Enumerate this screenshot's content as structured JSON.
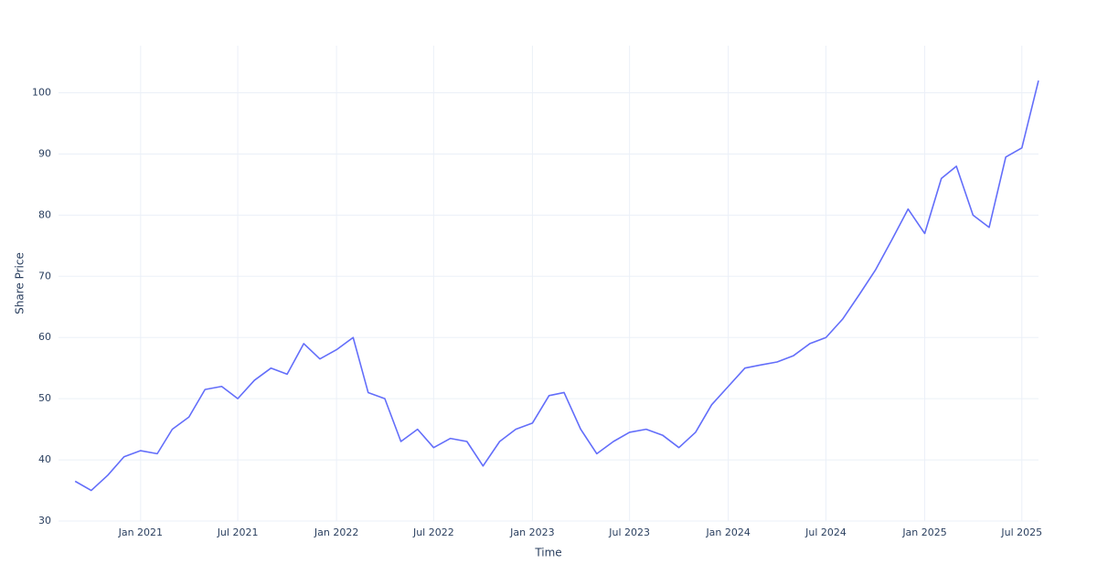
{
  "chart_data": {
    "type": "line",
    "x_label": "Time",
    "y_label": "Share Price",
    "x": [
      "2020-09",
      "2020-10",
      "2020-11",
      "2020-12",
      "2021-01",
      "2021-02",
      "2021-03",
      "2021-04",
      "2021-05",
      "2021-06",
      "2021-07",
      "2021-08",
      "2021-09",
      "2021-10",
      "2021-11",
      "2021-12",
      "2022-01",
      "2022-02",
      "2022-03",
      "2022-04",
      "2022-05",
      "2022-06",
      "2022-07",
      "2022-08",
      "2022-09",
      "2022-10",
      "2022-11",
      "2022-12",
      "2023-01",
      "2023-02",
      "2023-03",
      "2023-04",
      "2023-05",
      "2023-06",
      "2023-07",
      "2023-08",
      "2023-09",
      "2023-10",
      "2023-11",
      "2023-12",
      "2024-01",
      "2024-02",
      "2024-03",
      "2024-04",
      "2024-05",
      "2024-06",
      "2024-07",
      "2024-08",
      "2024-09",
      "2024-10",
      "2024-11",
      "2024-12",
      "2025-01",
      "2025-02",
      "2025-03",
      "2025-04",
      "2025-05",
      "2025-06",
      "2025-07",
      "2025-08"
    ],
    "series": [
      {
        "name": "Share Price",
        "color": "#636efa",
        "values": [
          36.5,
          35,
          37.5,
          40.5,
          41.5,
          41,
          45,
          47,
          51.5,
          52,
          50,
          53,
          55,
          54,
          59,
          56.5,
          58,
          60,
          51,
          50,
          43,
          45,
          42,
          43.5,
          43,
          39,
          43,
          45,
          46,
          50.5,
          51,
          45,
          41,
          43,
          44.5,
          45,
          44,
          42,
          44.5,
          49,
          52,
          55,
          55.5,
          56,
          57,
          59,
          60,
          63,
          67,
          71,
          76,
          81,
          77,
          86,
          88,
          80,
          78,
          89.5,
          91,
          102
        ]
      }
    ],
    "xlim": [
      "2020-08",
      "2025-08"
    ],
    "xticks": [
      {
        "value": "2021-01",
        "label": "Jan 2021"
      },
      {
        "value": "2021-07",
        "label": "Jul 2021"
      },
      {
        "value": "2022-01",
        "label": "Jan 2022"
      },
      {
        "value": "2022-07",
        "label": "Jul 2022"
      },
      {
        "value": "2023-01",
        "label": "Jan 2023"
      },
      {
        "value": "2023-07",
        "label": "Jul 2023"
      },
      {
        "value": "2024-01",
        "label": "Jan 2024"
      },
      {
        "value": "2024-07",
        "label": "Jul 2024"
      },
      {
        "value": "2025-01",
        "label": "Jan 2025"
      },
      {
        "value": "2025-07",
        "label": "Jul 2025"
      }
    ],
    "ylim": [
      30,
      107.7
    ],
    "yticks": [
      30,
      40,
      50,
      60,
      70,
      80,
      90,
      100
    ],
    "grid": true
  }
}
